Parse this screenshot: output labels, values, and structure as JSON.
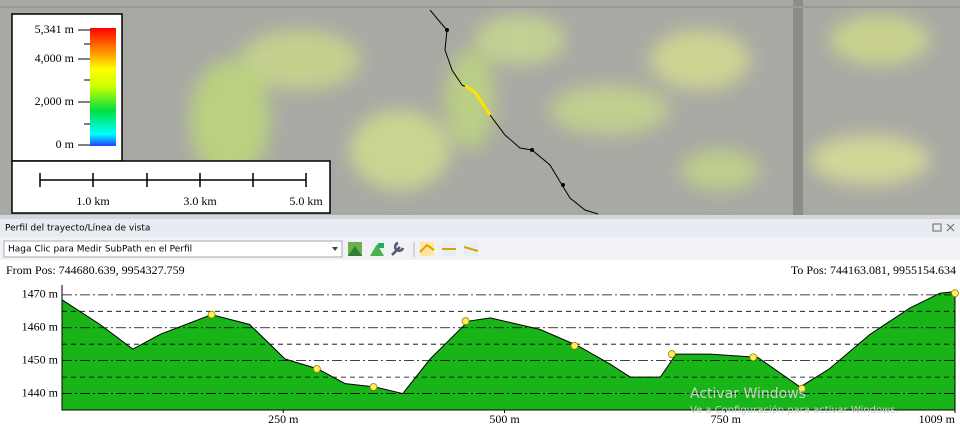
{
  "map": {
    "legend": {
      "labels": [
        "5,341 m",
        "4,000 m",
        "2,000 m",
        "0 m"
      ]
    },
    "scale_bar": {
      "labels": [
        "1.0 km",
        "3.0 km",
        "5.0 km"
      ]
    }
  },
  "panel": {
    "title": "Perfil del trayecto/Línea de vista",
    "dropdown": "Haga Clic para Medir SubPath en el Perfil",
    "from_pos": "From Pos: 744680.639, 9954327.759",
    "to_pos": "To Pos: 744163.081, 9955154.634"
  },
  "chart_data": {
    "type": "area",
    "x": [
      0,
      43,
      80,
      111,
      169,
      212,
      252,
      289,
      320,
      354,
      385,
      416,
      459,
      484,
      540,
      583,
      619,
      642,
      676,
      694,
      732,
      786,
      834,
      867,
      913,
      958,
      992,
      1009
    ],
    "values": [
      1468.5,
      1461,
      1453.5,
      1458,
      1464,
      1461,
      1450.5,
      1447.5,
      1443,
      1442,
      1440,
      1450.5,
      1462,
      1463,
      1459.5,
      1454.5,
      1449,
      1445,
      1445,
      1452,
      1452,
      1451,
      1442,
      1447.5,
      1458,
      1466,
      1470.5,
      1471
    ],
    "color": "#18b418",
    "markers": {
      "x": [
        169,
        288,
        352,
        456,
        579,
        689,
        781,
        836,
        1009
      ],
      "values": [
        1464,
        1447.5,
        1442,
        1462,
        1454.5,
        1452,
        1451,
        1441.5,
        1470.5
      ],
      "color": "#ffee55"
    },
    "xlim": [
      0,
      1009
    ],
    "ylim": [
      1435,
      1473
    ],
    "xticks": [
      {
        "value": 250,
        "label": "250 m"
      },
      {
        "value": 500,
        "label": "500 m"
      },
      {
        "value": 750,
        "label": "750 m"
      },
      {
        "value": 1009,
        "label": "1009 m"
      }
    ],
    "yticks": [
      {
        "value": 1440,
        "label": "1440 m"
      },
      {
        "value": 1450,
        "label": "1450 m"
      },
      {
        "value": 1460,
        "label": "1460 m"
      },
      {
        "value": 1470,
        "label": "1470 m"
      }
    ],
    "minor_gridlines": [
      1445,
      1455,
      1465
    ]
  },
  "watermark": {
    "title": "Activar Windows",
    "subtitle": "Ve a Configuración para activar Windows."
  }
}
